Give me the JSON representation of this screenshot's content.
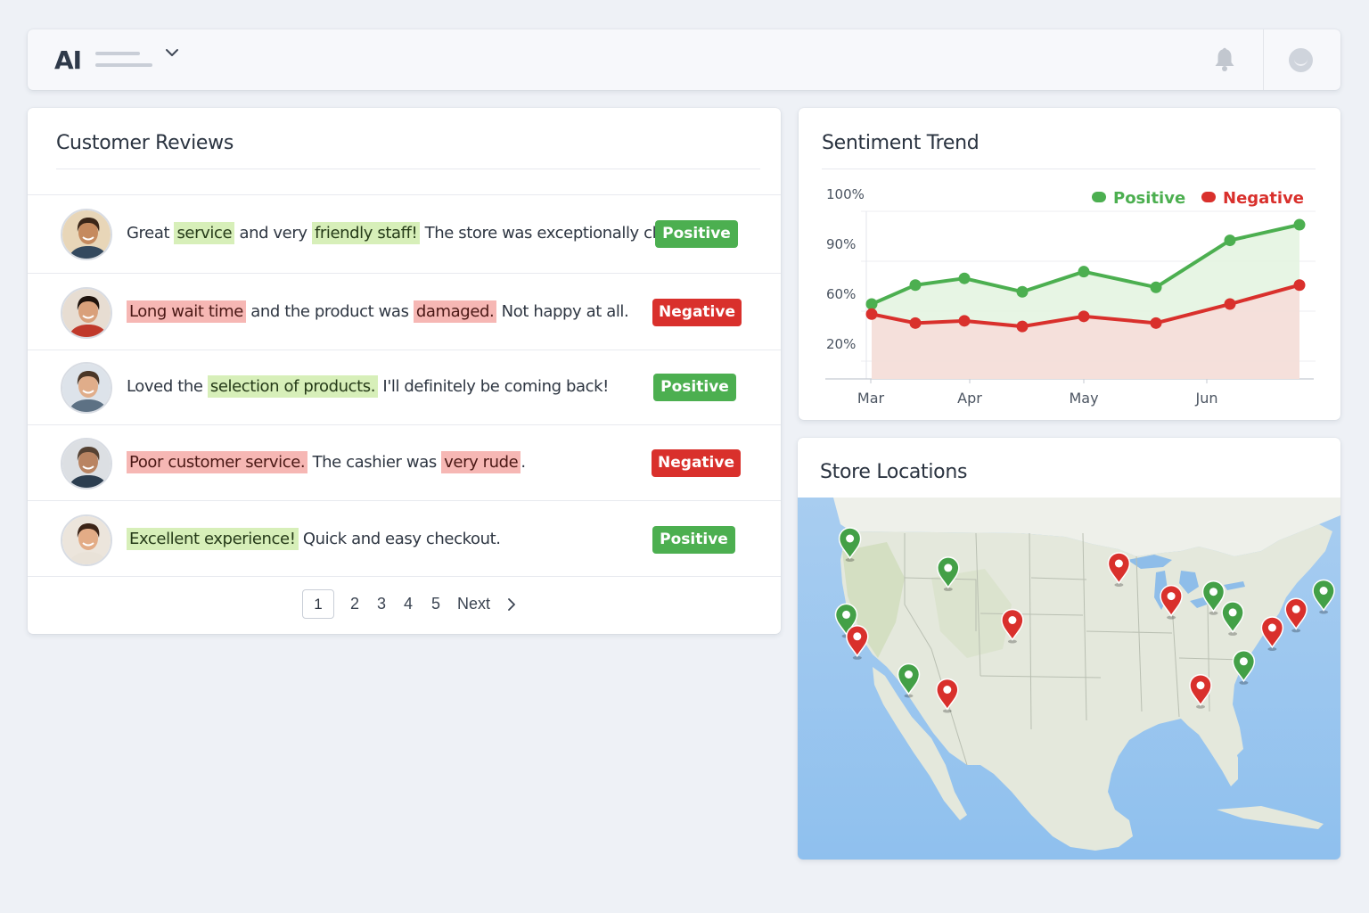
{
  "topbar": {
    "logo_text": "AI",
    "notifications_icon": "bell-icon",
    "account_icon": "user-avatar-icon"
  },
  "reviews": {
    "title": "Customer Reviews",
    "items": [
      {
        "avatar": "man-beard",
        "segments": [
          {
            "text": "Great ",
            "hl": ""
          },
          {
            "text": "service",
            "hl": "pos"
          },
          {
            "text": " and very ",
            "hl": ""
          },
          {
            "text": "friendly staff!",
            "hl": "pos"
          },
          {
            "text": " The store was exceptionally clean.",
            "hl": ""
          }
        ],
        "badge": "Positive",
        "sentiment": "pos"
      },
      {
        "avatar": "woman-dark-hair",
        "segments": [
          {
            "text": "Long wait time",
            "hl": "neg"
          },
          {
            "text": " and the product was ",
            "hl": ""
          },
          {
            "text": "damaged.",
            "hl": "neg"
          },
          {
            "text": " Not happy at all.",
            "hl": ""
          }
        ],
        "badge": "Negative",
        "sentiment": "neg"
      },
      {
        "avatar": "man-smile",
        "segments": [
          {
            "text": "Loved the ",
            "hl": ""
          },
          {
            "text": "selection of products.",
            "hl": "pos"
          },
          {
            "text": " I'll definitely be coming back!",
            "hl": ""
          }
        ],
        "badge": "Positive",
        "sentiment": "pos"
      },
      {
        "avatar": "man-suit-glasses",
        "segments": [
          {
            "text": "Poor customer service.",
            "hl": "neg"
          },
          {
            "text": " The cashier was ",
            "hl": ""
          },
          {
            "text": "very rude",
            "hl": "neg"
          },
          {
            "text": ".",
            "hl": ""
          }
        ],
        "badge": "Negative",
        "sentiment": "neg"
      },
      {
        "avatar": "woman-smile",
        "segments": [
          {
            "text": "Excellent experience!",
            "hl": "pos"
          },
          {
            "text": " Quick and easy checkout.",
            "hl": ""
          }
        ],
        "badge": "Positive",
        "sentiment": "pos"
      }
    ],
    "pagination": {
      "current": "1",
      "pages": [
        "2",
        "3",
        "4",
        "5"
      ],
      "next_label": "Next"
    }
  },
  "trend": {
    "title": "Sentiment Trend"
  },
  "chart_data": {
    "type": "line",
    "title": "Sentiment Trend",
    "y_tick_labels": [
      "100%",
      "90%",
      "60%",
      "20%"
    ],
    "x_tick_labels": [
      "Mar",
      "Apr",
      "May",
      "Jun"
    ],
    "legend_position": "top-right",
    "grid": true,
    "series": [
      {
        "name": "Positive",
        "color": "#4caf50",
        "fill": "#e3f3df",
        "values": [
          67,
          84,
          90,
          78,
          96,
          82,
          124,
          138
        ]
      },
      {
        "name": "Negative",
        "color": "#d9302c",
        "fill": "#f7dcd9",
        "values": [
          58,
          50,
          52,
          47,
          56,
          50,
          67,
          84
        ]
      }
    ],
    "note_scale": "axis printed with non-linear tick labels; values are in chart-height units"
  },
  "map": {
    "title": "Store Locations",
    "pins": [
      {
        "lon": -122.6,
        "lat": 47.2,
        "status": "pos"
      },
      {
        "lon": -111.9,
        "lat": 44.5,
        "status": "pos"
      },
      {
        "lon": -123.0,
        "lat": 40.2,
        "status": "pos"
      },
      {
        "lon": -121.8,
        "lat": 38.2,
        "status": "neg"
      },
      {
        "lon": -116.2,
        "lat": 34.7,
        "status": "pos"
      },
      {
        "lon": -112.0,
        "lat": 33.3,
        "status": "neg"
      },
      {
        "lon": -104.9,
        "lat": 39.7,
        "status": "neg"
      },
      {
        "lon": -93.3,
        "lat": 44.9,
        "status": "neg"
      },
      {
        "lon": -87.6,
        "lat": 41.9,
        "status": "neg"
      },
      {
        "lon": -83.0,
        "lat": 42.3,
        "status": "pos"
      },
      {
        "lon": -80.9,
        "lat": 40.4,
        "status": "pos"
      },
      {
        "lon": -79.7,
        "lat": 35.9,
        "status": "pos"
      },
      {
        "lon": -84.4,
        "lat": 33.7,
        "status": "neg"
      },
      {
        "lon": -74.0,
        "lat": 40.7,
        "status": "neg"
      },
      {
        "lon": -76.6,
        "lat": 39.0,
        "status": "neg"
      },
      {
        "lon": -71.0,
        "lat": 42.4,
        "status": "pos"
      }
    ]
  }
}
